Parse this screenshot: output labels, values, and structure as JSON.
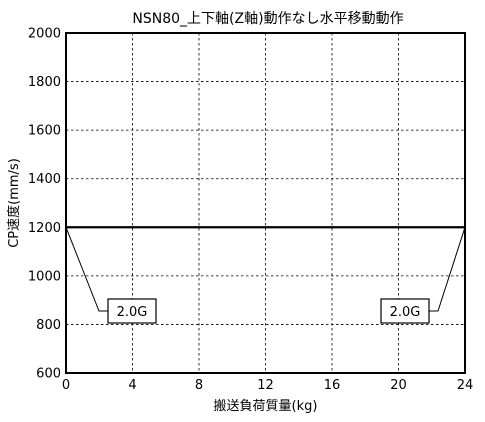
{
  "chart_data": {
    "type": "line",
    "title": "NSN80_上下軸(Z軸)動作なし水平移動動作",
    "xlabel": "搬送負荷質量(kg)",
    "ylabel": "CP速度(mm/s)",
    "xlim": [
      0,
      24
    ],
    "ylim": [
      600,
      2000
    ],
    "x_ticks": [
      "0",
      "4",
      "8",
      "12",
      "16",
      "20",
      "24"
    ],
    "y_ticks": [
      "600",
      "800",
      "1000",
      "1200",
      "1400",
      "1600",
      "1800",
      "2000"
    ],
    "grid": true,
    "series": [
      {
        "x": [
          0,
          24
        ],
        "y": [
          1200,
          1200
        ]
      }
    ],
    "annotations": [
      {
        "text": "2.0G",
        "point": [
          0,
          1200
        ]
      },
      {
        "text": "2.0G",
        "point": [
          24,
          1200
        ]
      }
    ]
  }
}
